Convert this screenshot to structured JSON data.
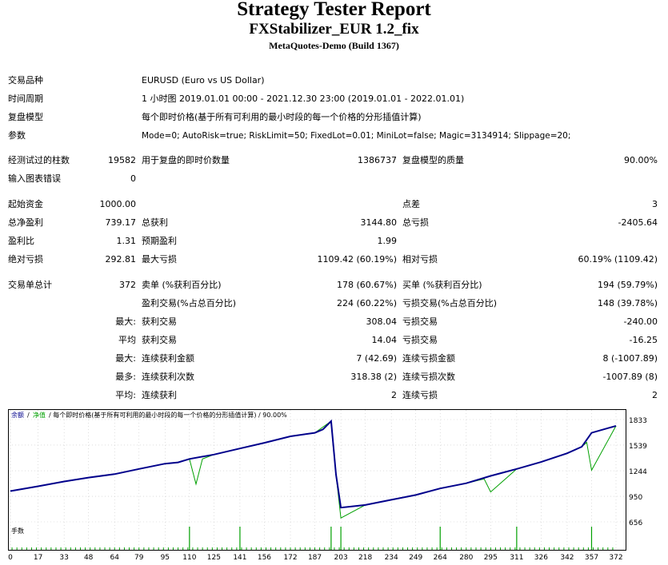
{
  "header": {
    "title": "Strategy Tester Report",
    "subtitle": "FXStabilizer_EUR 1.2_fix",
    "build": "MetaQuotes-Demo (Build 1367)"
  },
  "info": {
    "symbol_label": "交易品种",
    "symbol_value": "EURUSD (Euro vs US Dollar)",
    "period_label": "时间周期",
    "period_value": "1 小时图 2019.01.01 00:00 - 2021.12.30 23:00 (2019.01.01 - 2022.01.01)",
    "model_label": "复盘模型",
    "model_value": "每个即时价格(基于所有可利用的最小时段的每一个价格的分形插值计算)",
    "params_label": "参数",
    "params_value": "Mode=0; AutoRisk=true; RiskLimit=50; FixedLot=0.01; MiniLot=false; Magic=3134914; Slippage=20;"
  },
  "stats": {
    "bars_label": "经测试过的柱数",
    "bars_value": "19582",
    "ticks_label": "用于复盘的即时价数量",
    "ticks_value": "1386737",
    "quality_label": "复盘模型的质量",
    "quality_value": "90.00%",
    "errors_label": "输入图表错误",
    "errors_value": "0",
    "deposit_label": "起始资金",
    "deposit_value": "1000.00",
    "spread_label": "点差",
    "spread_value": "3",
    "net_label": "总净盈利",
    "net_value": "739.17",
    "gross_profit_label": "总获利",
    "gross_profit_value": "3144.80",
    "gross_loss_label": "总亏损",
    "gross_loss_value": "-2405.64",
    "pf_label": "盈利比",
    "pf_value": "1.31",
    "ep_label": "预期盈利",
    "ep_value": "1.99",
    "abs_dd_label": "绝对亏损",
    "abs_dd_value": "292.81",
    "max_dd_label": "最大亏损",
    "max_dd_value": "1109.42 (60.19%)",
    "rel_dd_label": "相对亏损",
    "rel_dd_value": "60.19% (1109.42)",
    "trades_label": "交易单总计",
    "trades_value": "372",
    "short_label": "卖单 (%获利百分比)",
    "short_value": "178 (60.67%)",
    "long_label": "买单 (%获利百分比)",
    "long_value": "194 (59.79%)",
    "profit_trades_label": "盈利交易(%占总百分比)",
    "profit_trades_value": "224 (60.22%)",
    "loss_trades_label": "亏损交易(%占总百分比)",
    "loss_trades_value": "148 (39.78%)",
    "max_label": "最大:",
    "largest_profit_label": "获利交易",
    "largest_profit_value": "308.04",
    "largest_loss_label": "亏损交易",
    "largest_loss_value": "-240.00",
    "avg_label": "平均",
    "avg_profit_label": "获利交易",
    "avg_profit_value": "14.04",
    "avg_loss_label": "亏损交易",
    "avg_loss_value": "-16.25",
    "max2_label": "最大:",
    "cons_win_amt_label": "连续获利金额",
    "cons_win_amt_value": "7 (42.69)",
    "cons_loss_amt_label": "连续亏损金额",
    "cons_loss_amt_value": "8 (-1007.89)",
    "most_label": "最多:",
    "cons_win_cnt_label": "连续获利次数",
    "cons_win_cnt_value": "318.38 (2)",
    "cons_loss_cnt_label": "连续亏损次数",
    "cons_loss_cnt_value": "-1007.89 (8)",
    "avg2_label": "平均:",
    "avg_cons_win_label": "连续获利",
    "avg_cons_win_value": "2",
    "avg_cons_loss_label": "连续亏损",
    "avg_cons_loss_value": "2"
  },
  "chart_data": {
    "type": "line",
    "legend": {
      "balance": "余额",
      "separator": "/",
      "equity": "净值",
      "description": "/ 每个即时价格(基于所有可利用的最小时段的每一个价格的分形插值计算) / 90.00%"
    },
    "balance_color": "#00008b",
    "equity_color": "#00a000",
    "volume_label": "手数",
    "y_ticks": [
      1833,
      1539,
      1244,
      950,
      656
    ],
    "ylim": [
      656,
      1833
    ],
    "x_ticks": [
      0,
      17,
      33,
      48,
      64,
      79,
      95,
      110,
      125,
      141,
      156,
      172,
      187,
      203,
      218,
      234,
      249,
      264,
      280,
      295,
      311,
      326,
      342,
      357,
      372
    ],
    "xlim": [
      0,
      372
    ],
    "series": [
      {
        "name": "余额",
        "x": [
          0,
          17,
          33,
          48,
          64,
          79,
          95,
          103,
          110,
          125,
          141,
          156,
          172,
          187,
          192,
          197,
          200,
          203,
          218,
          234,
          249,
          264,
          280,
          295,
          311,
          326,
          342,
          351,
          357,
          372
        ],
        "values": [
          1010,
          1065,
          1120,
          1165,
          1205,
          1265,
          1325,
          1340,
          1380,
          1430,
          1500,
          1565,
          1640,
          1680,
          1720,
          1815,
          1200,
          820,
          850,
          910,
          965,
          1040,
          1100,
          1185,
          1265,
          1345,
          1445,
          1520,
          1680,
          1760
        ]
      },
      {
        "name": "净值",
        "x": [
          0,
          17,
          33,
          48,
          64,
          79,
          95,
          103,
          110,
          114,
          118,
          125,
          141,
          156,
          172,
          187,
          197,
          200,
          203,
          218,
          234,
          249,
          264,
          280,
          291,
          295,
          311,
          326,
          342,
          351,
          354,
          357,
          372
        ],
        "values": [
          1010,
          1065,
          1120,
          1165,
          1205,
          1265,
          1325,
          1340,
          1380,
          1090,
          1380,
          1430,
          1500,
          1565,
          1640,
          1680,
          1815,
          1200,
          700,
          850,
          910,
          965,
          1040,
          1100,
          1150,
          1000,
          1265,
          1345,
          1445,
          1520,
          1570,
          1250,
          1760
        ]
      }
    ],
    "volume_spikes_x": [
      110,
      141,
      197,
      203,
      264,
      311,
      357
    ]
  }
}
